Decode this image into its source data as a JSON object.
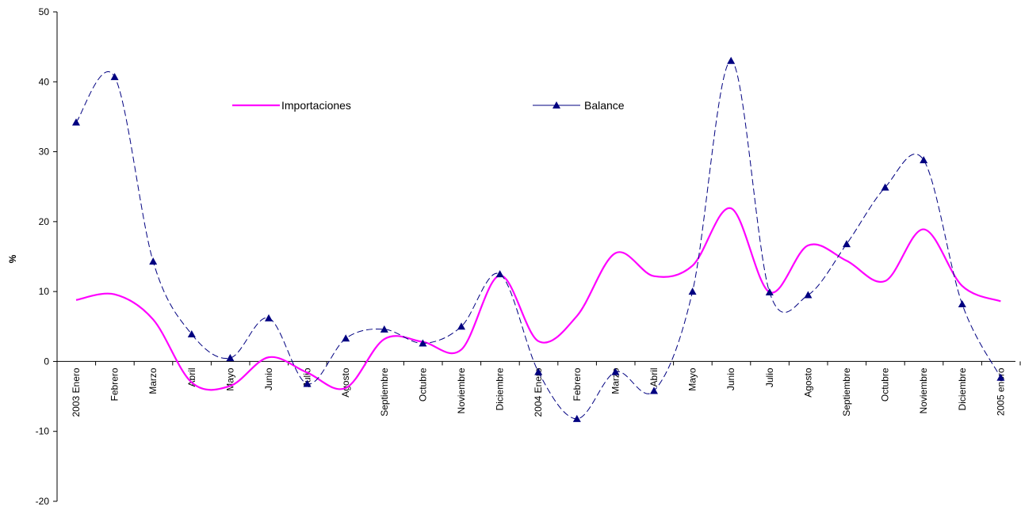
{
  "chart_data": {
    "type": "line",
    "ylabel": "%",
    "xlabel": "",
    "title": "",
    "ylim": [
      -20,
      50
    ],
    "yticks": [
      -20,
      -10,
      0,
      10,
      20,
      30,
      40,
      50
    ],
    "grid": false,
    "legend_placement": "inside-top",
    "categories": [
      "2003 Enero",
      "Febrero",
      "Marzo",
      "Abril",
      "Mayo",
      "Junio",
      "Julio",
      "Agosto",
      "Septiembre",
      "Octubre",
      "Noviembre",
      "Diciembre",
      "2004 Enero",
      "Febrero",
      "Marzo",
      "Abril",
      "Mayo",
      "Junio",
      "Julio",
      "Agosto",
      "Septiembre",
      "Octubre",
      "Noviembre",
      "Diciembre",
      "2005 enero"
    ],
    "series": [
      {
        "name": "Importaciones",
        "color": "#ff00ff",
        "style": "solid",
        "marker": "none",
        "values": [
          8.8,
          9.6,
          6.0,
          -3.0,
          -3.5,
          0.6,
          -1.6,
          -3.8,
          3.2,
          2.8,
          1.7,
          12.3,
          2.9,
          6.5,
          15.5,
          12.2,
          13.7,
          21.9,
          9.9,
          16.6,
          14.4,
          11.5,
          18.9,
          10.8,
          8.6
        ]
      },
      {
        "name": "Balance",
        "color": "#000080",
        "style": "dashed",
        "marker": "triangle",
        "values": [
          34.2,
          40.7,
          14.3,
          3.9,
          0.5,
          6.2,
          -3.2,
          3.3,
          4.6,
          2.6,
          5.0,
          12.5,
          -1.5,
          -8.2,
          -1.5,
          -4.2,
          10.0,
          43.0,
          9.9,
          9.5,
          16.8,
          24.9,
          28.8,
          8.2,
          -2.3
        ]
      }
    ]
  }
}
